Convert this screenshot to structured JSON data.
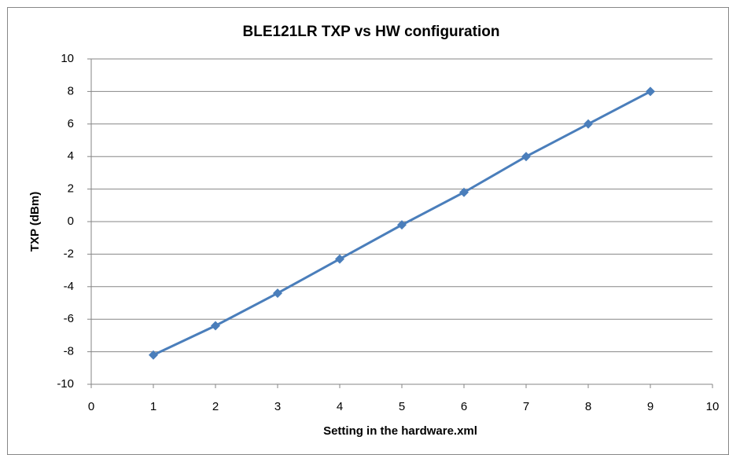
{
  "chart_data": {
    "type": "line",
    "title": "BLE121LR TXP vs HW configuration",
    "x_label": "Setting in the hardware.xml",
    "y_label": "TXP (dBm)",
    "x": [
      1,
      2,
      3,
      4,
      5,
      6,
      7,
      8,
      9
    ],
    "series": [
      {
        "name": "TXP",
        "color": "#4a7ebb",
        "values": [
          -8.2,
          -6.4,
          -4.4,
          -2.3,
          -0.2,
          1.8,
          4,
          6,
          8
        ]
      }
    ],
    "xlim": [
      0,
      10
    ],
    "xticks": [
      0,
      1,
      2,
      3,
      4,
      5,
      6,
      7,
      8,
      9,
      10
    ],
    "ylim": [
      -10,
      10
    ],
    "yticks": [
      -10,
      -8,
      -6,
      -4,
      -2,
      0,
      2,
      4,
      6,
      8,
      10
    ],
    "grid": true
  }
}
